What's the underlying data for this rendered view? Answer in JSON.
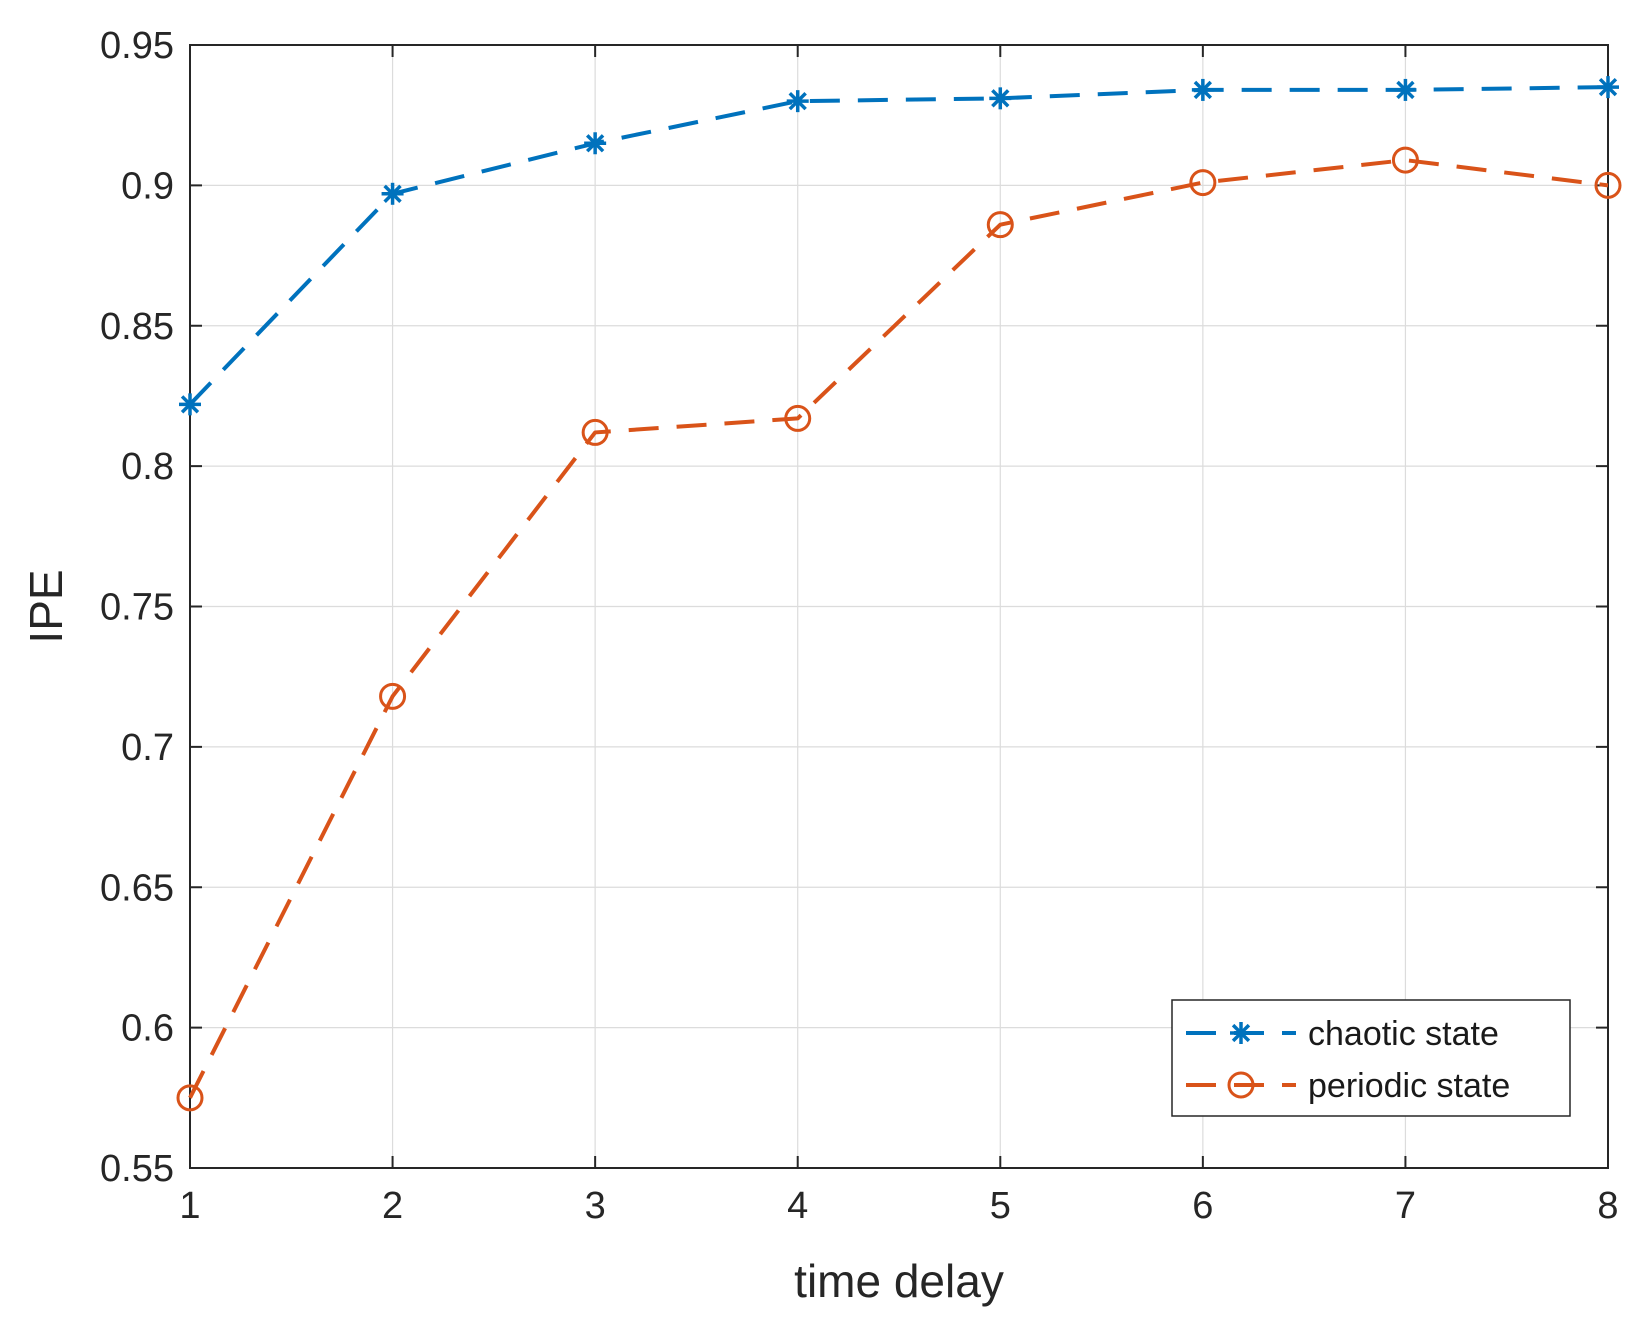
{
  "chart_data": {
    "type": "line",
    "title": "",
    "xlabel": "time delay",
    "ylabel": "IPE",
    "xlim": [
      1,
      8
    ],
    "ylim": [
      0.55,
      0.95
    ],
    "xticks": [
      "1",
      "2",
      "3",
      "4",
      "5",
      "6",
      "7",
      "8"
    ],
    "yticks": [
      "0.55",
      "0.6",
      "0.65",
      "0.7",
      "0.75",
      "0.8",
      "0.85",
      "0.9",
      "0.95"
    ],
    "grid": true,
    "legend_position": "bottom-right",
    "x": [
      1,
      2,
      3,
      4,
      5,
      6,
      7,
      8
    ],
    "series": [
      {
        "name": "chaotic state",
        "values": [
          0.822,
          0.897,
          0.915,
          0.93,
          0.931,
          0.934,
          0.934,
          0.935
        ],
        "color": "#0072BD",
        "marker": "asterisk",
        "line_style": "dashed"
      },
      {
        "name": "periodic state",
        "values": [
          0.575,
          0.718,
          0.812,
          0.817,
          0.886,
          0.901,
          0.909,
          0.9
        ],
        "color": "#D95319",
        "marker": "circle",
        "line_style": "dashed"
      }
    ]
  }
}
